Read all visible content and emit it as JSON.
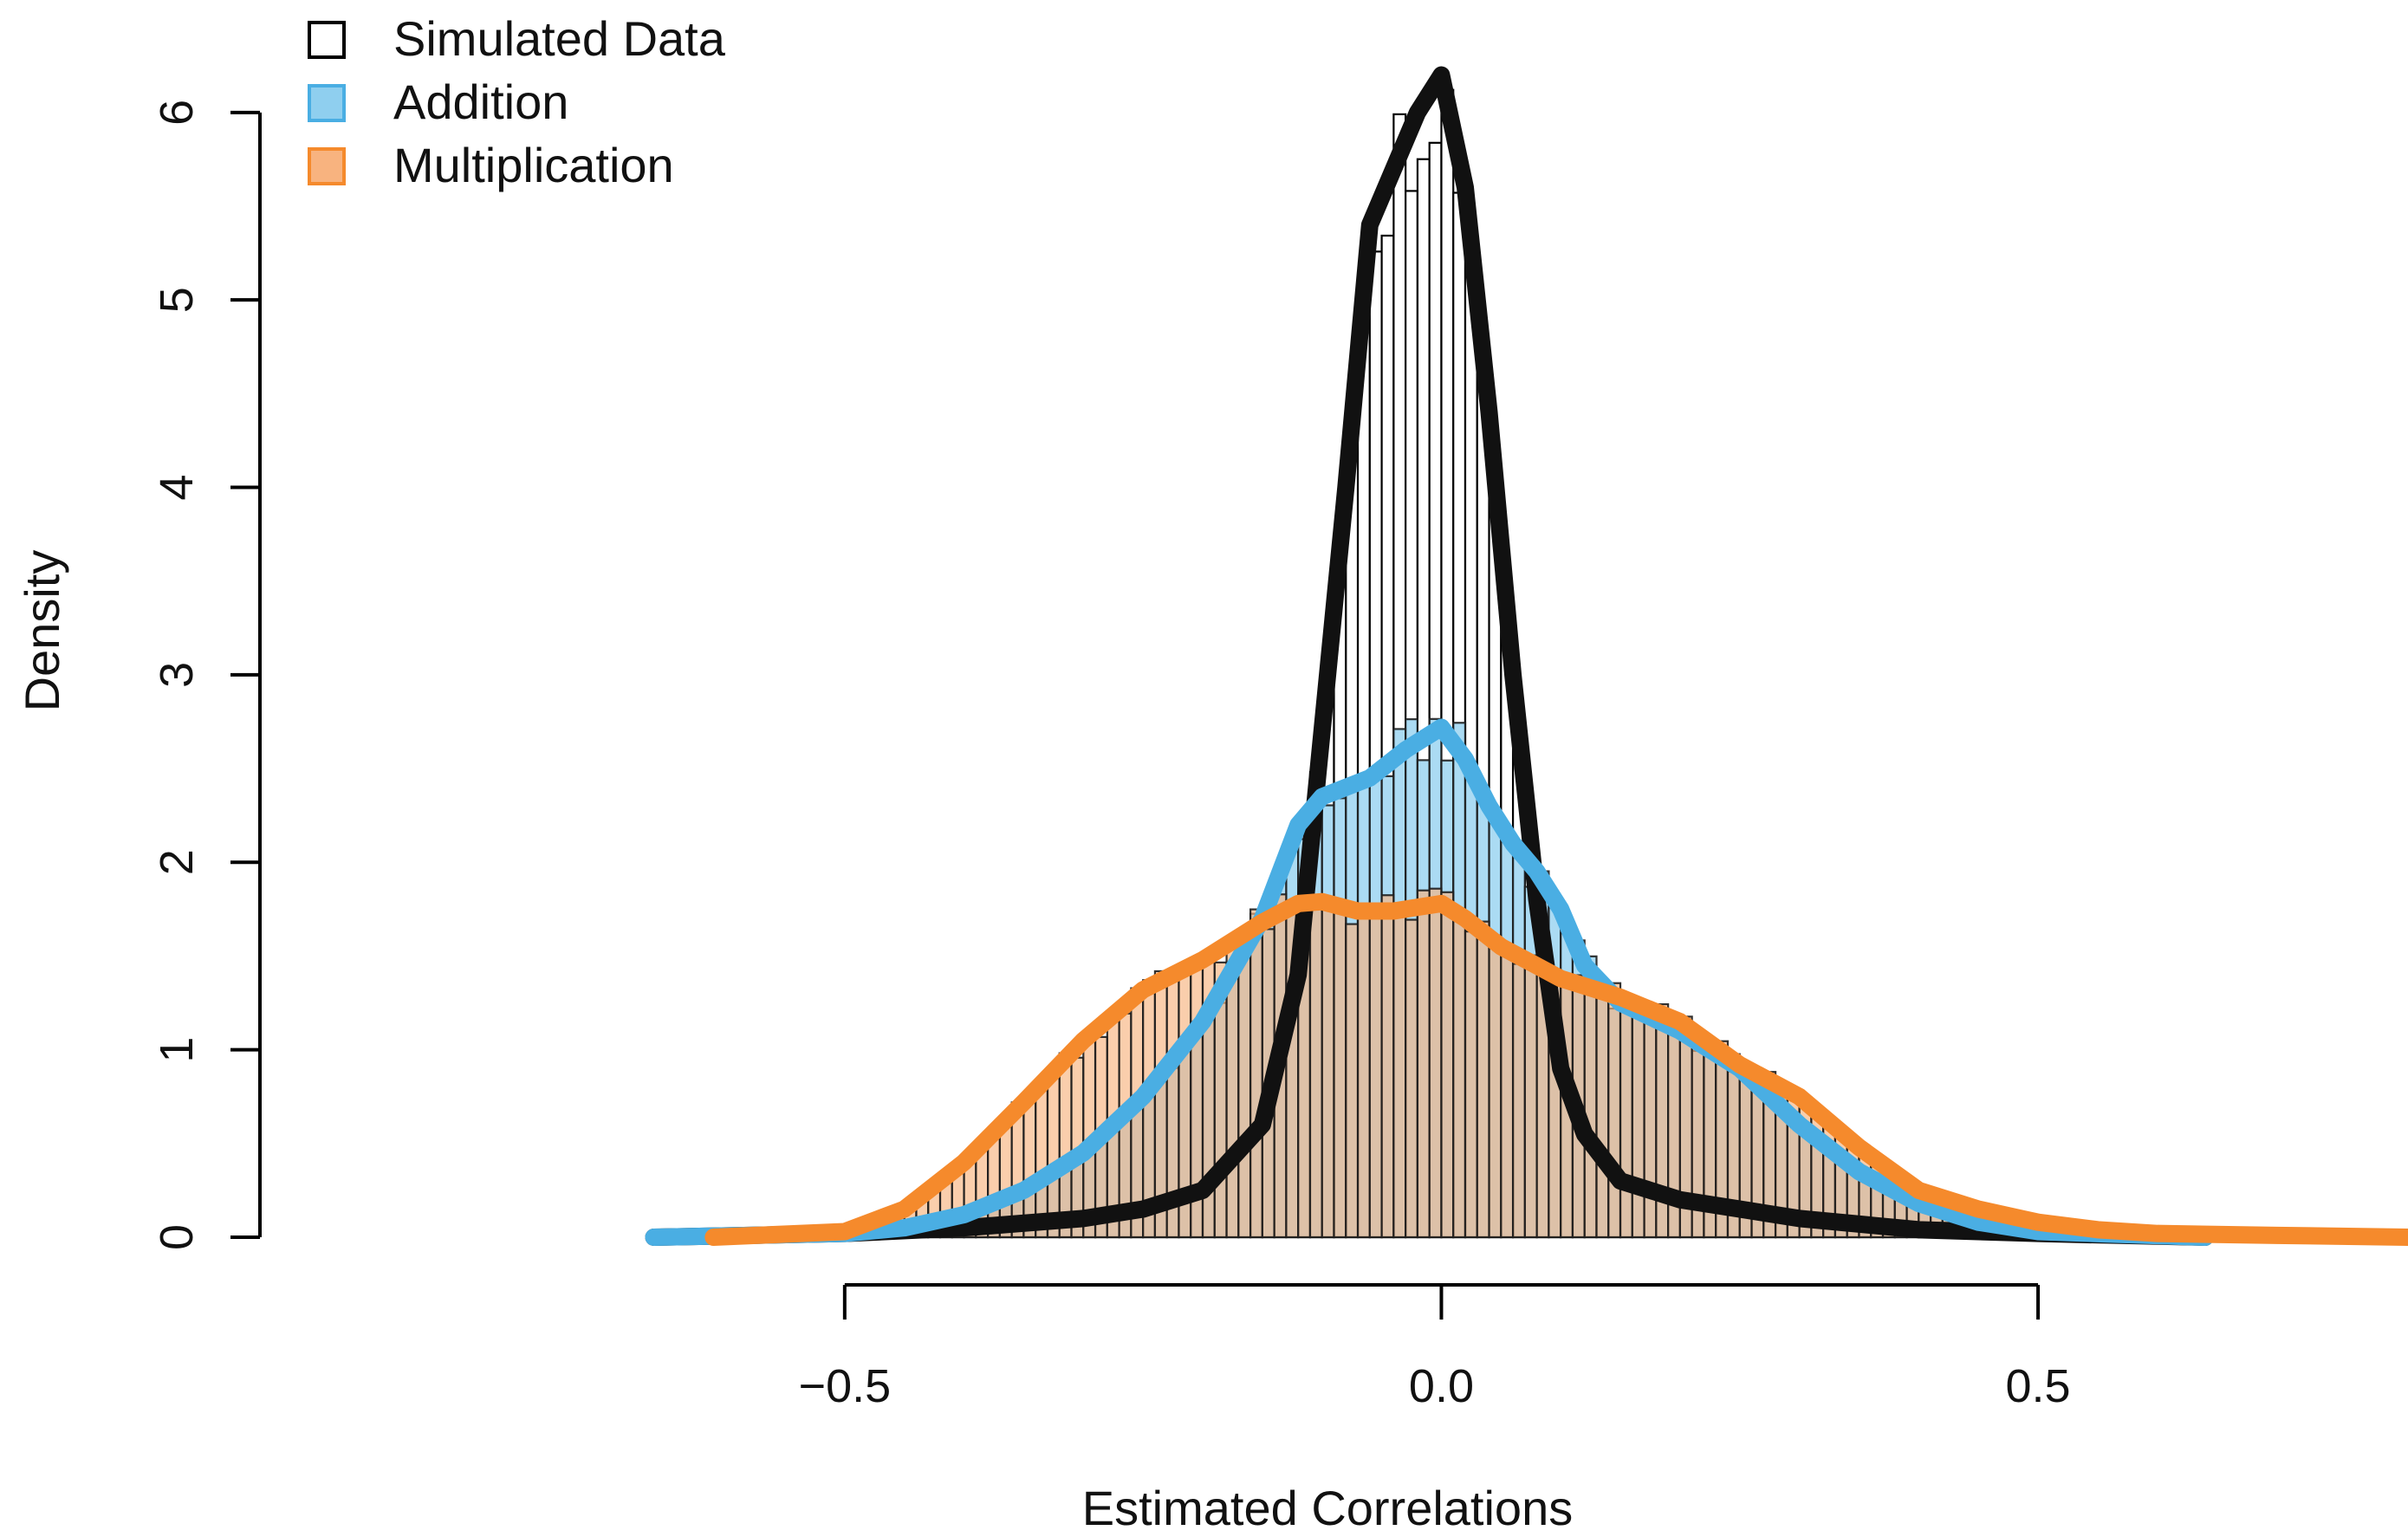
{
  "chart_data": {
    "type": "histogram",
    "xlabel": "Estimated Correlations",
    "ylabel": "Density",
    "xlim": [
      -0.99,
      0.81
    ],
    "ylim": [
      0,
      6.6
    ],
    "x_ticks": [
      -0.5,
      0.0,
      0.5
    ],
    "x_tick_labels": [
      "−0.5",
      "0.0",
      "0.5"
    ],
    "y_ticks": [
      0,
      1,
      2,
      3,
      4,
      5,
      6
    ],
    "y_tick_labels": [
      "0",
      "1",
      "2",
      "3",
      "4",
      "5",
      "6"
    ],
    "grid": false,
    "legend_position": "top-left",
    "bin_width": 0.01,
    "series": [
      {
        "name": "Simulated Data",
        "color": "#000000",
        "fill": "#ffffff",
        "curve_color": "#111111",
        "density_x": [
          -0.66,
          -0.5,
          -0.4,
          -0.3,
          -0.25,
          -0.2,
          -0.15,
          -0.12,
          -0.1,
          -0.08,
          -0.06,
          -0.04,
          -0.02,
          0.0,
          0.02,
          0.04,
          0.06,
          0.08,
          0.1,
          0.12,
          0.15,
          0.2,
          0.25,
          0.3,
          0.4,
          0.5,
          0.64
        ],
        "density_y": [
          0,
          0.02,
          0.05,
          0.1,
          0.15,
          0.25,
          0.6,
          1.4,
          2.7,
          4.0,
          5.4,
          5.7,
          6.0,
          6.2,
          5.6,
          4.4,
          3.0,
          1.8,
          0.9,
          0.55,
          0.3,
          0.2,
          0.15,
          0.1,
          0.04,
          0.02,
          0
        ]
      },
      {
        "name": "Addition",
        "color": "#4aaee3",
        "fill": "#8fcfef",
        "curve_color": "#4aaee3",
        "density_x": [
          -0.66,
          -0.5,
          -0.45,
          -0.4,
          -0.35,
          -0.3,
          -0.25,
          -0.2,
          -0.15,
          -0.12,
          -0.1,
          -0.06,
          -0.03,
          0.0,
          0.02,
          0.04,
          0.06,
          0.08,
          0.1,
          0.12,
          0.15,
          0.2,
          0.25,
          0.3,
          0.35,
          0.4,
          0.45,
          0.5,
          0.64
        ],
        "density_y": [
          0,
          0.02,
          0.05,
          0.12,
          0.25,
          0.45,
          0.75,
          1.15,
          1.7,
          2.2,
          2.35,
          2.45,
          2.6,
          2.72,
          2.55,
          2.3,
          2.1,
          1.95,
          1.75,
          1.45,
          1.25,
          1.1,
          0.9,
          0.6,
          0.35,
          0.18,
          0.08,
          0.03,
          0
        ]
      },
      {
        "name": "Multiplication",
        "color": "#f58a2c",
        "fill": "#f8b37f",
        "curve_color": "#f58a2c",
        "density_x": [
          -0.61,
          -0.5,
          -0.45,
          -0.4,
          -0.35,
          -0.3,
          -0.25,
          -0.2,
          -0.15,
          -0.12,
          -0.1,
          -0.07,
          -0.04,
          0.0,
          0.02,
          0.05,
          0.1,
          0.15,
          0.2,
          0.25,
          0.3,
          0.35,
          0.4,
          0.45,
          0.5,
          0.55,
          0.6,
          0.7,
          0.81
        ],
        "density_y": [
          0,
          0.03,
          0.15,
          0.4,
          0.72,
          1.05,
          1.32,
          1.48,
          1.68,
          1.78,
          1.79,
          1.74,
          1.74,
          1.78,
          1.7,
          1.55,
          1.38,
          1.28,
          1.15,
          0.92,
          0.75,
          0.48,
          0.25,
          0.15,
          0.08,
          0.04,
          0.02,
          0.01,
          0
        ]
      }
    ]
  }
}
